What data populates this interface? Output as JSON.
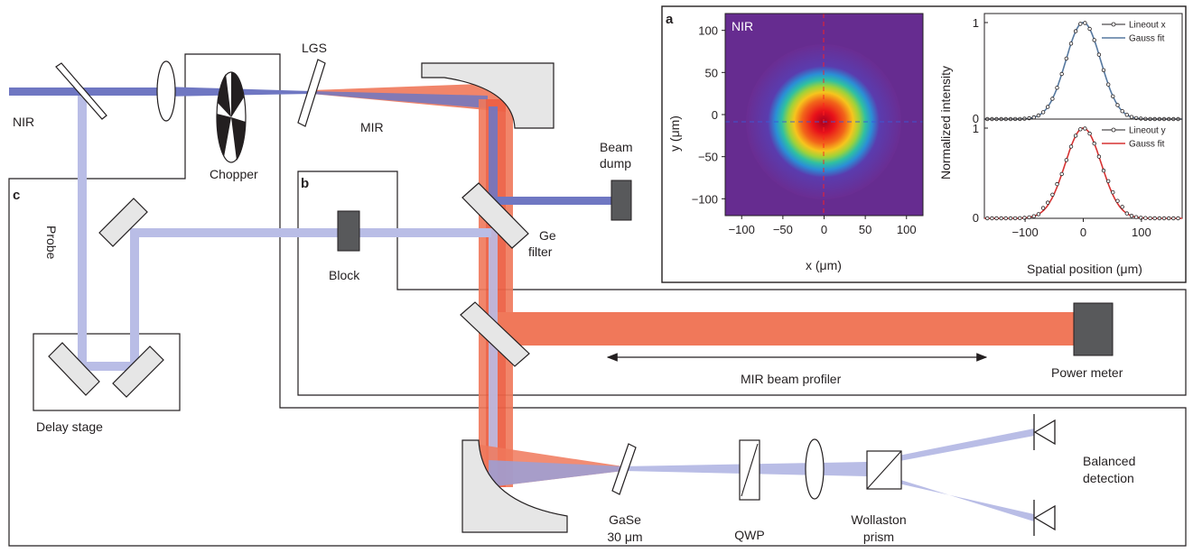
{
  "labels": {
    "nir": "NIR",
    "lgs": "LGS",
    "mir": "MIR",
    "chopper": "Chopper",
    "beam_dump": [
      "Beam",
      "dump"
    ],
    "probe": "Probe",
    "block": "Block",
    "ge_filter": [
      "Ge",
      "filter"
    ],
    "mir_beam_profiler": "MIR beam profiler",
    "power_meter": "Power meter",
    "delay_stage": "Delay stage",
    "gase": [
      "GaSe",
      "30 μm"
    ],
    "qwp": "QWP",
    "wollaston": [
      "Wollaston",
      "prism"
    ],
    "balanced_detection": [
      "Balanced",
      "detection"
    ]
  },
  "panel_letters": {
    "a": "a",
    "b": "b",
    "c": "c"
  },
  "colors": {
    "nir_beam": "#6f77c2",
    "probe_beam": "#b9bde6",
    "mir_beam": "#f0785a",
    "mir_beam_core": "#e8462f",
    "optic_grey": "#e6e6e6",
    "device_dark": "#58595b",
    "outline": "#231f20"
  },
  "inset_a": {
    "image": {
      "label": "NIR",
      "xlabel": "x (μm)",
      "ylabel": "y (μm)",
      "xticks": [
        "−100",
        "−50",
        "0",
        "50",
        "100"
      ],
      "yticks": [
        "100",
        "50",
        "0",
        "−50",
        "−100"
      ],
      "colormap": "jet"
    },
    "lineouts": {
      "ylabel": "Normalized intensity",
      "xlabel": "Spatial position (μm)",
      "xticks": [
        "−100",
        "0",
        "100"
      ],
      "top_yticks": [
        "1",
        "0"
      ],
      "bottom_yticks": [
        "1",
        "0"
      ],
      "legend_top": [
        "Lineout x",
        "Gauss fit"
      ],
      "legend_bottom": [
        "Lineout y",
        "Gauss fit"
      ]
    }
  },
  "chart_data": {
    "type": "line",
    "xlabel": "Spatial position (μm)",
    "ylabel": "Normalized intensity",
    "xlim": [
      -170,
      170
    ],
    "ylim": [
      0,
      1
    ],
    "series": [
      {
        "name": "Lineout x",
        "fit": "Gauss fit",
        "center": 0,
        "sigma": 30,
        "amplitude": 1,
        "color": "#56789f"
      },
      {
        "name": "Lineout y",
        "fit": "Gauss fit",
        "center": 0,
        "sigma": 31,
        "amplitude": 1,
        "color": "#d63232"
      }
    ]
  }
}
